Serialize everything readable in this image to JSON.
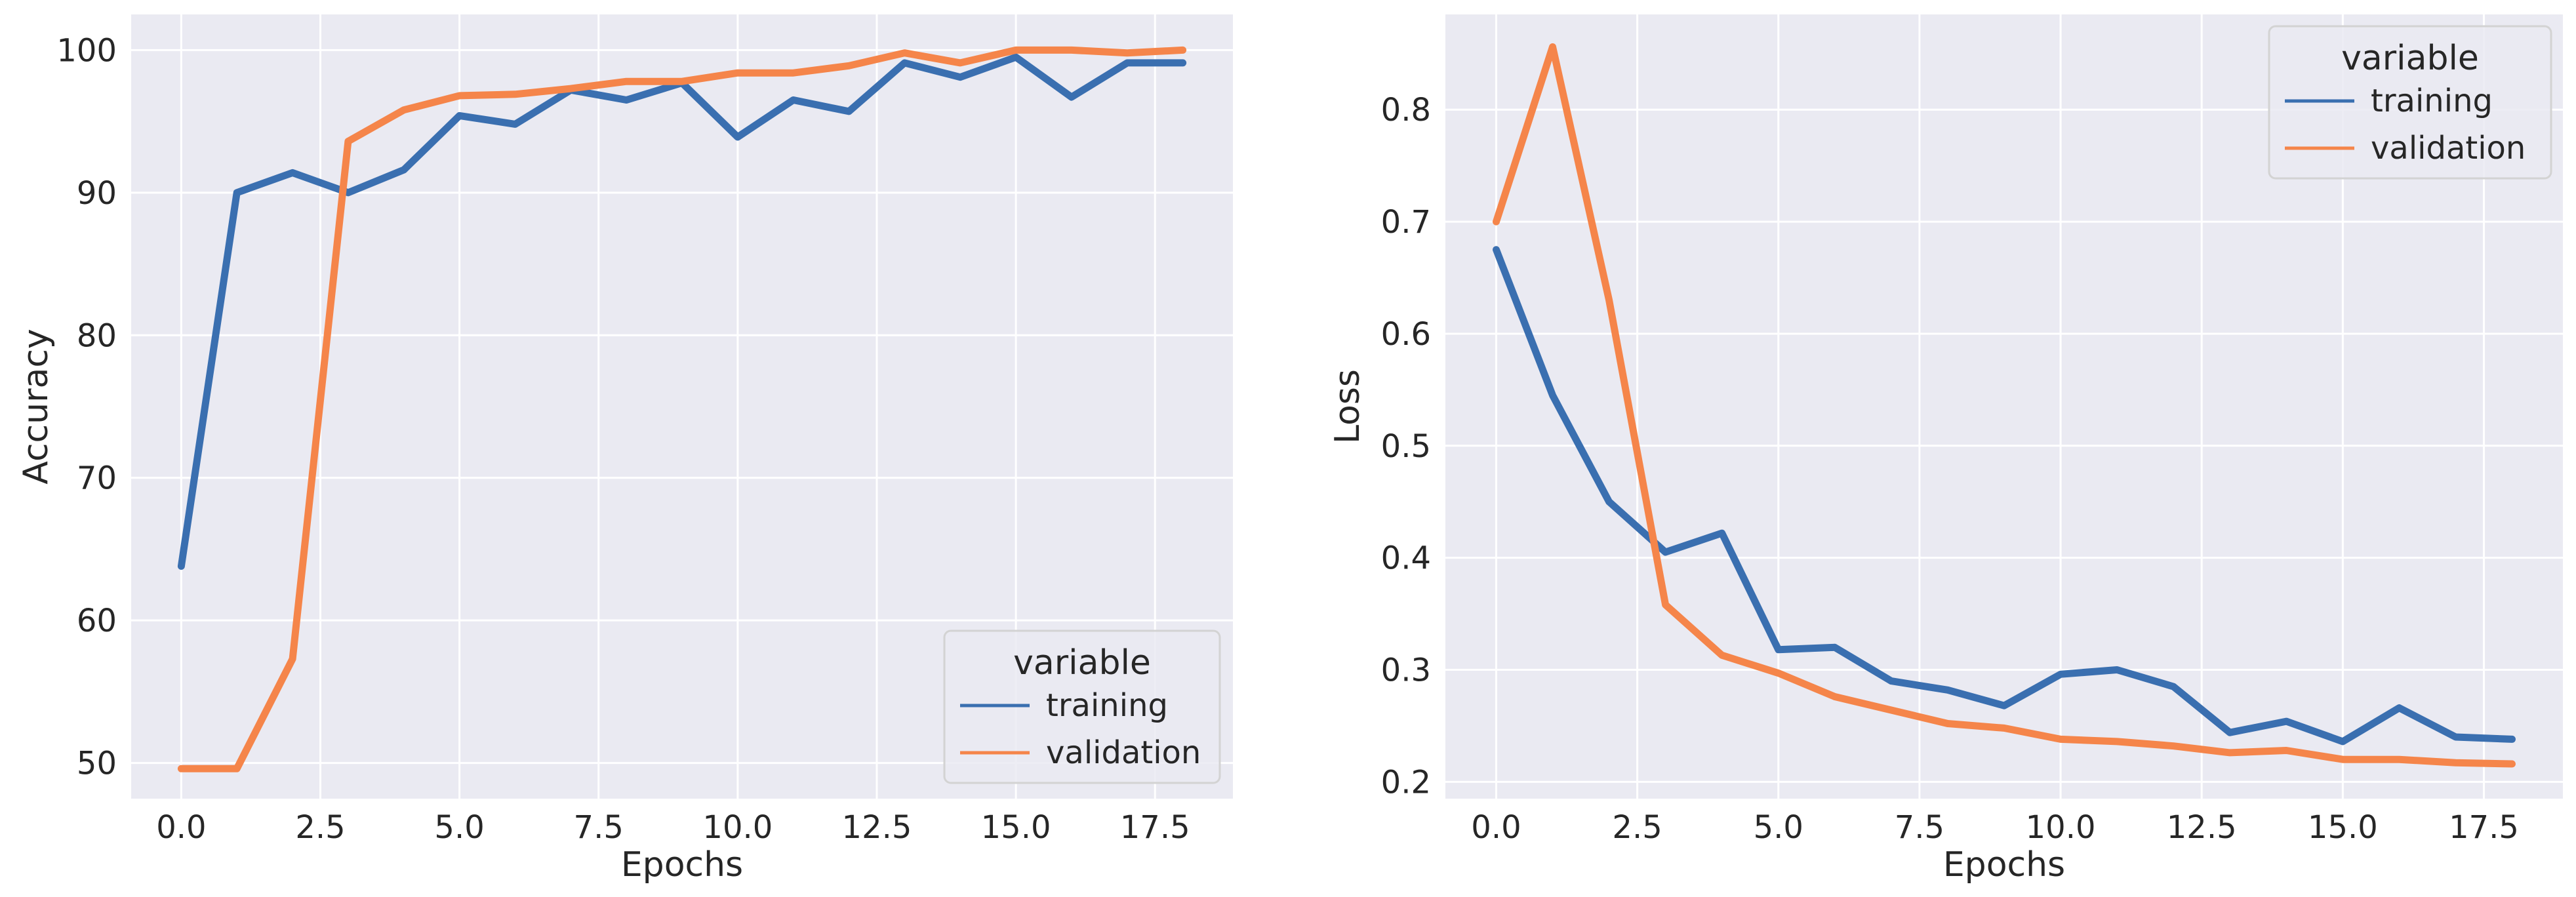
{
  "colors": {
    "training": "#3a6fb0",
    "validation": "#f5854a",
    "panel_bg": "#eaeaf2",
    "grid": "#ffffff",
    "legend_bg": "#eaeaf2",
    "legend_border": "#d3d3d3"
  },
  "chart_data": [
    {
      "type": "line",
      "title": "",
      "xlabel": "Epochs",
      "ylabel": "Accuracy",
      "x": [
        0,
        1,
        2,
        3,
        4,
        5,
        6,
        7,
        8,
        9,
        10,
        11,
        12,
        13,
        14,
        15,
        16,
        17,
        18
      ],
      "xlim": [
        -0.9,
        18.9
      ],
      "ylim": [
        47.5,
        102.5
      ],
      "xticks": [
        0.0,
        2.5,
        5.0,
        7.5,
        10.0,
        12.5,
        15.0,
        17.5
      ],
      "xtick_labels": [
        "0.0",
        "2.5",
        "5.0",
        "7.5",
        "10.0",
        "12.5",
        "15.0",
        "17.5"
      ],
      "yticks": [
        50,
        60,
        70,
        80,
        90,
        100
      ],
      "ytick_labels": [
        "50",
        "60",
        "70",
        "80",
        "90",
        "100"
      ],
      "grid": true,
      "legend": {
        "title": "variable",
        "entries": [
          "training",
          "validation"
        ],
        "position": "lower-right"
      },
      "series": [
        {
          "name": "training",
          "values": [
            63.8,
            90.0,
            91.4,
            90.0,
            91.6,
            95.4,
            94.8,
            97.2,
            96.5,
            97.7,
            93.9,
            96.5,
            95.7,
            99.1,
            98.1,
            99.5,
            96.7,
            99.1,
            99.1
          ]
        },
        {
          "name": "validation",
          "values": [
            49.6,
            49.6,
            57.3,
            93.6,
            95.8,
            96.8,
            96.9,
            97.3,
            97.8,
            97.8,
            98.4,
            98.4,
            98.9,
            99.8,
            99.1,
            100.0,
            100.0,
            99.8,
            100.0
          ]
        }
      ]
    },
    {
      "type": "line",
      "title": "",
      "xlabel": "Epochs",
      "ylabel": "Loss",
      "x": [
        0,
        1,
        2,
        3,
        4,
        5,
        6,
        7,
        8,
        9,
        10,
        11,
        12,
        13,
        14,
        15,
        16,
        17,
        18
      ],
      "xlim": [
        -0.9,
        18.9
      ],
      "ylim": [
        0.185,
        0.885
      ],
      "xticks": [
        0.0,
        2.5,
        5.0,
        7.5,
        10.0,
        12.5,
        15.0,
        17.5
      ],
      "xtick_labels": [
        "0.0",
        "2.5",
        "5.0",
        "7.5",
        "10.0",
        "12.5",
        "15.0",
        "17.5"
      ],
      "yticks": [
        0.2,
        0.3,
        0.4,
        0.5,
        0.6,
        0.7,
        0.8
      ],
      "ytick_labels": [
        "0.2",
        "0.3",
        "0.4",
        "0.5",
        "0.6",
        "0.7",
        "0.8"
      ],
      "grid": true,
      "legend": {
        "title": "variable",
        "entries": [
          "training",
          "validation"
        ],
        "position": "upper-right"
      },
      "series": [
        {
          "name": "training",
          "values": [
            0.675,
            0.545,
            0.45,
            0.405,
            0.422,
            0.318,
            0.32,
            0.29,
            0.282,
            0.268,
            0.296,
            0.3,
            0.285,
            0.244,
            0.254,
            0.236,
            0.266,
            0.24,
            0.238
          ]
        },
        {
          "name": "validation",
          "values": [
            0.7,
            0.856,
            0.63,
            0.358,
            0.313,
            0.297,
            0.276,
            0.264,
            0.252,
            0.248,
            0.238,
            0.236,
            0.232,
            0.226,
            0.228,
            0.22,
            0.22,
            0.217,
            0.216
          ]
        }
      ]
    }
  ]
}
